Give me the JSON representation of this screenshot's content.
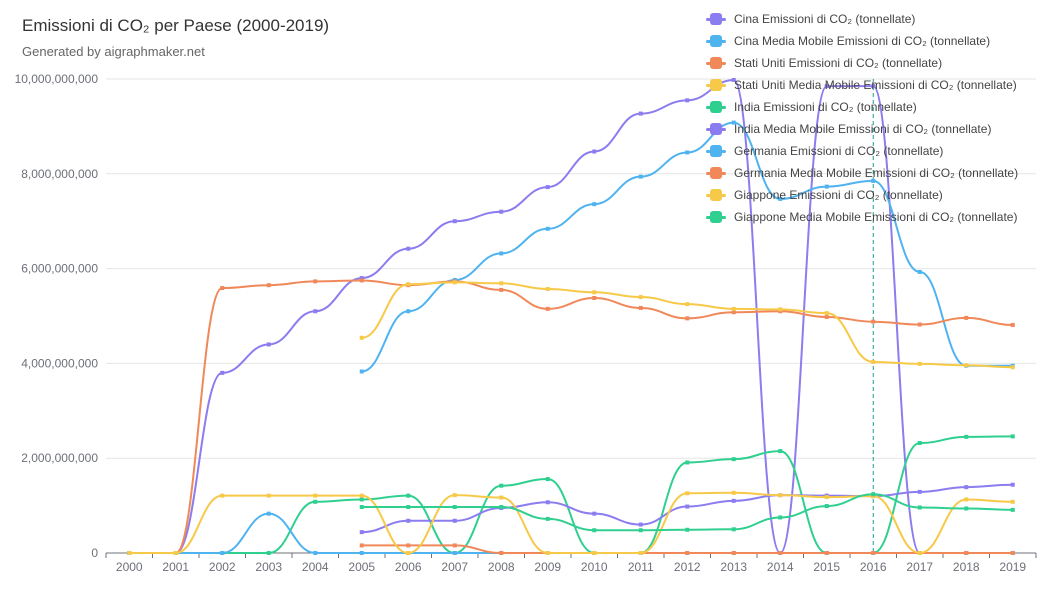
{
  "title": "Emissioni di CO₂ per Paese (2000-2019)",
  "subtitle": "Generated by aigraphmaker.net",
  "chart_data": {
    "type": "line",
    "title": "Emissioni di CO₂ per Paese (2000-2019)",
    "xlabel": "",
    "ylabel": "",
    "ylim": [
      0,
      10000000000
    ],
    "y_ticks": [
      "0",
      "2,000,000,000",
      "4,000,000,000",
      "6,000,000,000",
      "8,000,000,000",
      "10,000,000,000"
    ],
    "y_tick_values": [
      0,
      2000000000,
      4000000000,
      6000000000,
      8000000000,
      10000000000
    ],
    "categories": [
      "2000",
      "2001",
      "2002",
      "2003",
      "2004",
      "2005",
      "2006",
      "2007",
      "2008",
      "2009",
      "2010",
      "2011",
      "2012",
      "2013",
      "2014",
      "2015",
      "2016",
      "2017",
      "2018",
      "2019"
    ],
    "grid": true,
    "legend_position": "top-right",
    "highlight_category": "2016",
    "series": [
      {
        "name": "Cina Emissioni di CO₂ (tonnellate)",
        "color": "#8b7cf0",
        "values": [
          0,
          0,
          3800000000,
          4400000000,
          5100000000,
          5800000000,
          6420000000,
          7000000000,
          7200000000,
          7720000000,
          8470000000,
          9270000000,
          9550000000,
          9980000000,
          0,
          9850000000,
          9850000000,
          0,
          0,
          0
        ]
      },
      {
        "name": "Cina Media Mobile Emissioni di CO₂ (tonnellate)",
        "color": "#4fb3f0",
        "values": [
          null,
          null,
          null,
          null,
          null,
          3830000000,
          5100000000,
          5760000000,
          6320000000,
          6840000000,
          7360000000,
          7940000000,
          8450000000,
          9080000000,
          7470000000,
          7730000000,
          7850000000,
          5930000000,
          3950000000,
          3950000000
        ]
      },
      {
        "name": "Stati Uniti Emissioni di CO₂ (tonnellate)",
        "color": "#f0885a",
        "values": [
          0,
          0,
          5590000000,
          5650000000,
          5730000000,
          5750000000,
          5650000000,
          5730000000,
          5550000000,
          5150000000,
          5380000000,
          5170000000,
          4950000000,
          5080000000,
          5100000000,
          4980000000,
          4880000000,
          4820000000,
          4960000000,
          4810000000
        ]
      },
      {
        "name": "Stati Uniti Media Mobile Emissioni di CO₂ (tonnellate)",
        "color": "#f7c948",
        "values": [
          null,
          null,
          null,
          null,
          null,
          4540000000,
          5670000000,
          5710000000,
          5690000000,
          5570000000,
          5500000000,
          5400000000,
          5250000000,
          5150000000,
          5140000000,
          5060000000,
          4030000000,
          3990000000,
          3960000000,
          3920000000
        ]
      },
      {
        "name": "India Emissioni di CO₂ (tonnellate)",
        "color": "#2fcf8f",
        "values": [
          0,
          0,
          0,
          0,
          1080000000,
          1130000000,
          1210000000,
          0,
          1420000000,
          1560000000,
          0,
          0,
          1910000000,
          1980000000,
          2150000000,
          0,
          0,
          2320000000,
          2450000000,
          2460000000
        ]
      },
      {
        "name": "India Media Mobile Emissioni di CO₂ (tonnellate)",
        "color": "#8b7cf0",
        "values": [
          null,
          null,
          null,
          null,
          null,
          440000000,
          680000000,
          680000000,
          950000000,
          1070000000,
          830000000,
          600000000,
          980000000,
          1100000000,
          1220000000,
          1210000000,
          1200000000,
          1290000000,
          1390000000,
          1440000000
        ]
      },
      {
        "name": "Germania Emissioni di CO₂ (tonnellate)",
        "color": "#4fb3f0",
        "values": [
          0,
          0,
          0,
          830000000,
          0,
          0,
          0,
          0,
          0,
          0,
          0,
          0,
          0,
          0,
          0,
          0,
          0,
          0,
          0,
          0
        ]
      },
      {
        "name": "Germania Media Mobile Emissioni di CO₂ (tonnellate)",
        "color": "#f0885a",
        "values": [
          null,
          null,
          null,
          null,
          null,
          160000000,
          160000000,
          160000000,
          0,
          0,
          0,
          0,
          0,
          0,
          0,
          0,
          0,
          0,
          0,
          0
        ]
      },
      {
        "name": "Giappone Emissioni di CO₂ (tonnellate)",
        "color": "#f7c948",
        "values": [
          0,
          0,
          1210000000,
          1210000000,
          1210000000,
          1210000000,
          0,
          1220000000,
          1170000000,
          0,
          0,
          0,
          1260000000,
          1270000000,
          1220000000,
          1180000000,
          1200000000,
          0,
          1130000000,
          1080000000
        ]
      },
      {
        "name": "Giappone Media Mobile Emissioni di CO₂ (tonnellate)",
        "color": "#2fcf8f",
        "values": [
          null,
          null,
          null,
          null,
          null,
          970000000,
          970000000,
          970000000,
          970000000,
          720000000,
          480000000,
          480000000,
          490000000,
          500000000,
          750000000,
          990000000,
          1240000000,
          960000000,
          940000000,
          910000000
        ]
      }
    ]
  }
}
